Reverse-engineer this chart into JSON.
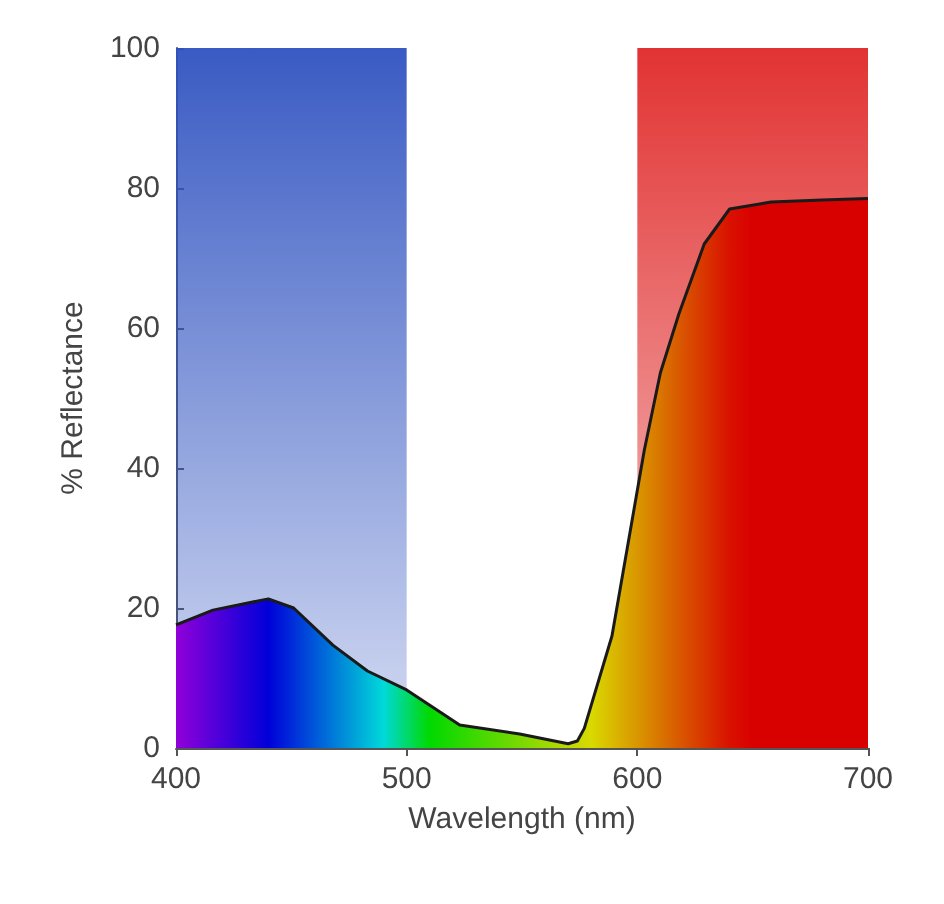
{
  "chart_data": {
    "type": "area",
    "xlabel": "Wavelength (nm)",
    "ylabel": "% Reflectance",
    "series": [
      {
        "color": "#1a1a1a",
        "x": [
          400,
          416,
          440,
          451,
          468,
          483,
          500,
          523,
          549,
          570,
          574,
          577,
          589,
          603,
          610,
          618,
          629,
          640,
          658,
          680,
          700
        ],
        "values": [
          17.6,
          19.7,
          21.3,
          20,
          14.7,
          11,
          8.3,
          3.3,
          2,
          0.6,
          1,
          2.8,
          16,
          42.5,
          53.6,
          62,
          72,
          77,
          78,
          78.3,
          78.5
        ]
      }
    ],
    "bands": [
      {
        "axis": "x",
        "from": 400,
        "to": 500,
        "color": "#2f52c0"
      },
      {
        "axis": "x",
        "from": 600,
        "to": 700,
        "color": "#e02828"
      }
    ],
    "xlim": [
      400,
      700
    ],
    "xticks": [
      400,
      500,
      600,
      700
    ],
    "ylim": [
      0,
      100
    ],
    "yticks": [
      0,
      20,
      40,
      60,
      80,
      100
    ]
  }
}
